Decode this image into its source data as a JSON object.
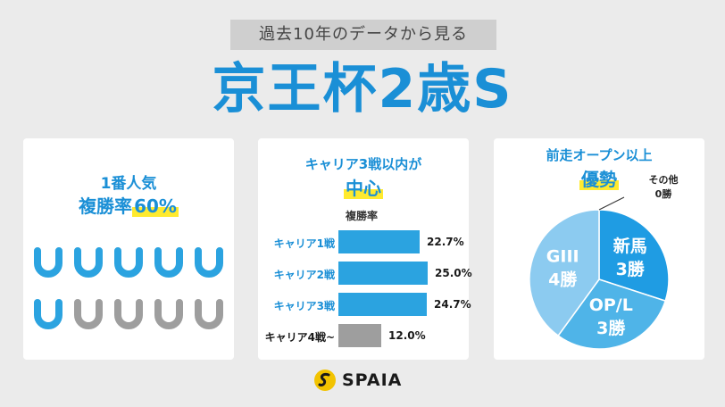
{
  "header": {
    "subtitle": "過去10年のデータから見る",
    "title": "京王杯2歳S"
  },
  "panel_popularity": {
    "line1": "1番人気",
    "line2_prefix": "複勝率",
    "line2_value": "60%",
    "place_count": 6,
    "total": 10,
    "colors": {
      "hit": "#2ba3e0",
      "miss": "#9e9e9e"
    }
  },
  "panel_career": {
    "line1": "キャリア3戦以内が",
    "line2": "中心",
    "axis_label": "複勝率",
    "chart_data": {
      "type": "bar",
      "categories": [
        "キャリア1戦",
        "キャリア2戦",
        "キャリア3戦",
        "キャリア4戦~"
      ],
      "values": [
        22.7,
        25.0,
        24.7,
        12.0
      ],
      "labels": [
        "22.7%",
        "25.0%",
        "24.7%",
        "12.0%"
      ],
      "colors": [
        "#2ba3e0",
        "#2ba3e0",
        "#2ba3e0",
        "#9e9e9e"
      ]
    }
  },
  "panel_prev_race": {
    "line1": "前走オープン以上",
    "line2": "優勢",
    "chart_data": {
      "type": "pie",
      "slices": [
        {
          "name": "新馬",
          "value_label": "3勝",
          "value": 3,
          "color": "#1f9ce3"
        },
        {
          "name": "OP/L",
          "value_label": "3勝",
          "value": 3,
          "color": "#4fb4e8"
        },
        {
          "name": "GIII",
          "value_label": "4勝",
          "value": 4,
          "color": "#8ccbf0"
        },
        {
          "name": "その他",
          "value_label": "0勝",
          "value": 0,
          "color": "#1f9ce3"
        }
      ]
    }
  },
  "logo": {
    "text": "SPAIA",
    "color": "#f2c300"
  }
}
